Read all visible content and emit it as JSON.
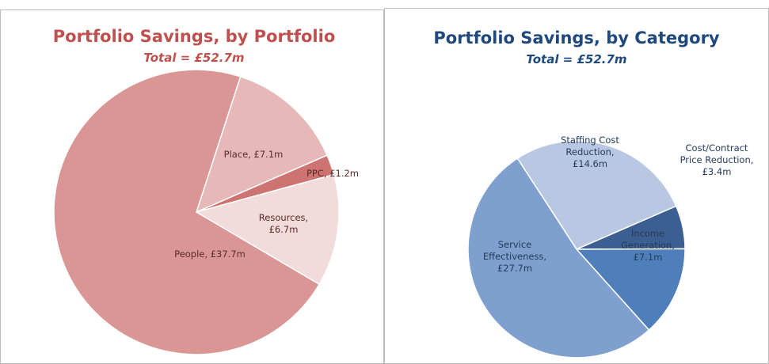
{
  "chart_data": [
    {
      "type": "pie",
      "title": "Portfolio Savings, by Portfolio",
      "subtitle": "Total = £52.7m",
      "categories": [
        "Place",
        "PPC",
        "Resources",
        "People"
      ],
      "values": [
        7.1,
        1.2,
        6.7,
        37.7
      ],
      "value_labels": [
        "Place, £7.1m",
        "PPC, £1.2m",
        "Resources, £6.7m",
        "People, £37.7m"
      ],
      "colors": [
        "#e6b9b8",
        "#cd7371",
        "#f2dcdb",
        "#d99694"
      ]
    },
    {
      "type": "pie",
      "title": "Portfolio Savings, by Category",
      "subtitle": "Total = £52.7m",
      "categories": [
        "Staffing Cost Reduction",
        "Cost/Contract Price Reduction",
        "Income Generation",
        "Service Effectiveness"
      ],
      "values": [
        14.6,
        3.4,
        7.1,
        27.7
      ],
      "value_labels": [
        "Staffing Cost Reduction, £14.6m",
        "Cost/Contract Price Reduction, £3.4m",
        "Income Generation, £7.1m",
        "Service Effectiveness, £27.7m"
      ],
      "colors": [
        "#b9c8e2",
        "#3c5f91",
        "#4f7fbb",
        "#7f9fcf"
      ]
    }
  ]
}
